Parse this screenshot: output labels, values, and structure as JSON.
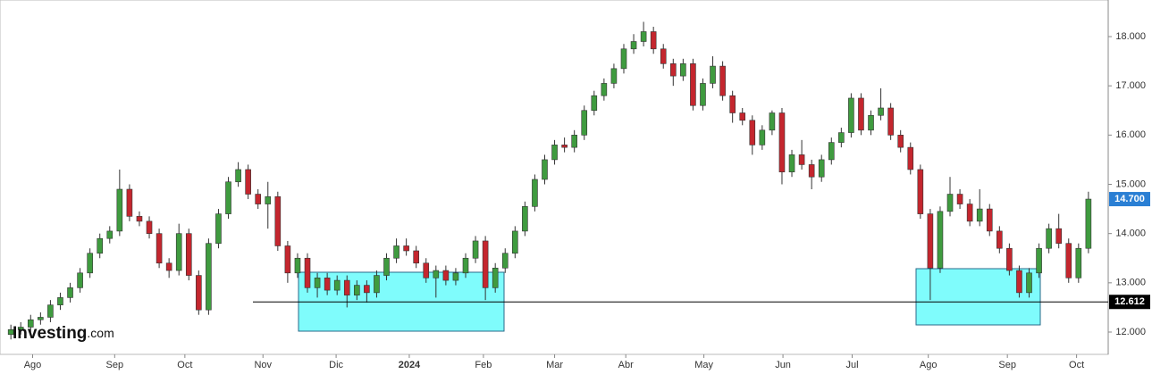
{
  "chart_data": {
    "type": "candlestick",
    "ylim": [
      11.547,
      18.743
    ],
    "xlim": [
      -1.1,
      111
    ],
    "yticks": [
      {
        "value": 12,
        "label": "12.000"
      },
      {
        "value": 13,
        "label": "13.000"
      },
      {
        "value": 14,
        "label": "14.000"
      },
      {
        "value": 15,
        "label": "15.000"
      },
      {
        "value": 16,
        "label": "16.000"
      },
      {
        "value": 17,
        "label": "17.000"
      },
      {
        "value": 18,
        "label": "18.000"
      }
    ],
    "xticks": [
      {
        "value": 2.2,
        "label": "Ago"
      },
      {
        "value": 10.5,
        "label": "Sep"
      },
      {
        "value": 17.6,
        "label": "Oct"
      },
      {
        "value": 25.5,
        "label": "Nov"
      },
      {
        "value": 32.9,
        "label": "Dic"
      },
      {
        "value": 40.3,
        "label": "2024"
      },
      {
        "value": 47.8,
        "label": "Feb"
      },
      {
        "value": 55.0,
        "label": "Mar"
      },
      {
        "value": 62.2,
        "label": "Abr"
      },
      {
        "value": 70.1,
        "label": "May"
      },
      {
        "value": 78.1,
        "label": "Jun"
      },
      {
        "value": 85.1,
        "label": "Jul"
      },
      {
        "value": 92.8,
        "label": "Ago"
      },
      {
        "value": 100.8,
        "label": "Sep"
      },
      {
        "value": 107.8,
        "label": "Oct"
      }
    ],
    "up_color": "#3f9b3f",
    "down_color": "#c4262e",
    "open": [
      11.95,
      12.05,
      12.1,
      12.25,
      12.3,
      12.55,
      12.7,
      12.9,
      13.2,
      13.6,
      13.9,
      14.05,
      14.9,
      14.35,
      14.25,
      14.0,
      13.4,
      13.25,
      14.0,
      13.15,
      12.45,
      13.8,
      14.4,
      15.05,
      15.3,
      14.8,
      14.6,
      14.75,
      13.75,
      13.2,
      13.5,
      12.9,
      13.1,
      12.85,
      13.05,
      12.75,
      12.95,
      12.8,
      13.15,
      13.5,
      13.75,
      13.65,
      13.4,
      13.1,
      13.25,
      13.05,
      13.2,
      13.5,
      13.85,
      12.9,
      13.3,
      13.6,
      14.05,
      14.55,
      15.1,
      15.5,
      15.8,
      15.75,
      16.0,
      16.5,
      16.8,
      17.05,
      17.35,
      17.75,
      17.9,
      18.1,
      17.75,
      17.45,
      17.2,
      17.45,
      16.6,
      17.05,
      17.4,
      16.8,
      16.45,
      16.3,
      15.8,
      16.1,
      16.45,
      15.25,
      15.6,
      15.4,
      15.15,
      15.5,
      15.85,
      16.05,
      16.75,
      16.1,
      16.4,
      16.55,
      16.0,
      15.75,
      15.3,
      14.4,
      13.3,
      14.45,
      14.8,
      14.6,
      14.25,
      14.5,
      14.05,
      13.7,
      13.25,
      12.8,
      13.2,
      13.7,
      14.1,
      13.8,
      13.1,
      13.7
    ],
    "high": [
      12.15,
      12.2,
      12.35,
      12.4,
      12.65,
      12.8,
      13.0,
      13.3,
      13.7,
      14.0,
      14.15,
      15.3,
      15.0,
      14.45,
      14.35,
      14.1,
      13.5,
      14.2,
      14.1,
      13.25,
      13.9,
      14.5,
      15.15,
      15.45,
      15.4,
      14.9,
      15.05,
      14.85,
      13.85,
      13.6,
      13.6,
      13.2,
      13.2,
      13.15,
      13.15,
      13.05,
      13.05,
      13.25,
      13.6,
      13.9,
      13.9,
      13.75,
      13.5,
      13.35,
      13.35,
      13.3,
      13.6,
      13.95,
      13.95,
      13.4,
      13.7,
      14.15,
      14.65,
      15.2,
      15.6,
      15.9,
      15.95,
      16.1,
      16.6,
      16.9,
      17.15,
      17.45,
      17.85,
      18.05,
      18.3,
      18.2,
      17.85,
      17.55,
      17.55,
      17.55,
      17.15,
      17.6,
      17.5,
      16.9,
      16.55,
      16.4,
      16.2,
      16.5,
      16.55,
      15.7,
      15.9,
      15.5,
      15.6,
      15.95,
      16.15,
      16.85,
      16.85,
      16.5,
      16.95,
      16.65,
      16.1,
      15.85,
      15.4,
      14.5,
      14.55,
      15.15,
      14.9,
      14.7,
      14.9,
      14.6,
      14.15,
      13.8,
      13.35,
      13.3,
      13.8,
      14.2,
      14.4,
      13.9,
      13.8,
      14.85
    ],
    "low": [
      11.85,
      11.95,
      12.0,
      12.15,
      12.2,
      12.45,
      12.6,
      12.8,
      13.1,
      13.5,
      13.8,
      13.95,
      14.25,
      14.15,
      13.9,
      13.3,
      13.1,
      13.15,
      13.05,
      12.35,
      12.35,
      13.7,
      14.3,
      14.95,
      14.7,
      14.5,
      14.1,
      13.65,
      13.0,
      13.1,
      12.8,
      12.7,
      12.75,
      12.75,
      12.5,
      12.65,
      12.6,
      12.7,
      13.05,
      13.4,
      13.55,
      13.3,
      13.0,
      12.7,
      12.95,
      12.95,
      13.1,
      13.4,
      12.65,
      12.8,
      13.2,
      13.5,
      13.95,
      14.45,
      15.0,
      15.4,
      15.65,
      15.65,
      15.9,
      16.4,
      16.7,
      16.95,
      17.25,
      17.65,
      17.8,
      17.65,
      17.35,
      17.0,
      17.1,
      16.5,
      16.5,
      16.95,
      16.7,
      16.25,
      16.2,
      15.6,
      15.7,
      16.0,
      15.0,
      15.15,
      15.3,
      14.9,
      15.05,
      15.4,
      15.75,
      15.95,
      16.0,
      16.0,
      16.3,
      15.9,
      15.65,
      15.2,
      14.3,
      12.65,
      13.2,
      14.35,
      14.5,
      14.15,
      14.15,
      13.95,
      13.6,
      13.15,
      12.7,
      12.7,
      13.1,
      13.6,
      13.7,
      13.0,
      13.0,
      13.6
    ],
    "close": [
      12.05,
      12.1,
      12.25,
      12.3,
      12.55,
      12.7,
      12.9,
      13.2,
      13.6,
      13.9,
      14.05,
      14.9,
      14.35,
      14.25,
      14.0,
      13.4,
      13.25,
      14.0,
      13.15,
      12.45,
      13.8,
      14.4,
      15.05,
      15.3,
      14.8,
      14.6,
      14.75,
      13.75,
      13.2,
      13.5,
      12.9,
      13.1,
      12.85,
      13.05,
      12.75,
      12.95,
      12.8,
      13.15,
      13.5,
      13.75,
      13.65,
      13.4,
      13.1,
      13.25,
      13.05,
      13.2,
      13.5,
      13.85,
      12.9,
      13.3,
      13.6,
      14.05,
      14.55,
      15.1,
      15.5,
      15.8,
      15.75,
      16.0,
      16.5,
      16.8,
      17.05,
      17.35,
      17.75,
      17.9,
      18.1,
      17.75,
      17.45,
      17.2,
      17.45,
      16.6,
      17.05,
      17.4,
      16.8,
      16.45,
      16.3,
      15.8,
      16.1,
      16.45,
      15.25,
      15.6,
      15.4,
      15.15,
      15.5,
      15.85,
      16.05,
      16.75,
      16.1,
      16.4,
      16.55,
      16.0,
      15.75,
      15.3,
      14.4,
      13.3,
      14.45,
      14.8,
      14.6,
      14.25,
      14.5,
      14.05,
      13.7,
      13.25,
      12.8,
      13.2,
      13.7,
      14.1,
      13.8,
      13.1,
      13.7,
      14.7
    ],
    "hline": {
      "value": 12.612,
      "color": "#000000"
    },
    "last_price": {
      "value": 14.7,
      "label": "14.700",
      "color": "#2a7fd4"
    },
    "watermark": {
      "brand": "Investing",
      "suffix": ".com"
    }
  }
}
